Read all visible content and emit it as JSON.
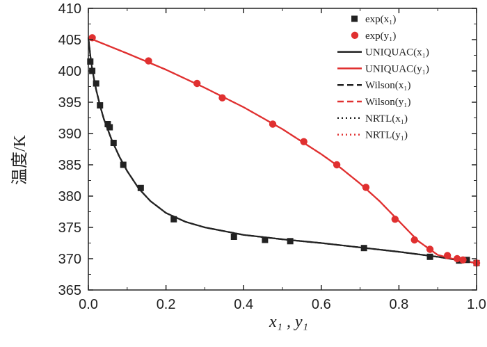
{
  "chart_data": {
    "type": "line",
    "xlabel": "x₁ , y₁",
    "ylabel": "温度/K",
    "xlim": [
      0.0,
      1.0
    ],
    "ylim": [
      365,
      410
    ],
    "x_ticks": [
      0.0,
      0.2,
      0.4,
      0.6,
      0.8,
      1.0
    ],
    "x_tick_labels": [
      "0.0",
      "0.2",
      "0.4",
      "0.6",
      "0.8",
      "1.0"
    ],
    "y_ticks": [
      365,
      370,
      375,
      380,
      385,
      390,
      395,
      400,
      405,
      410
    ],
    "y_tick_labels": [
      "365",
      "370",
      "375",
      "380",
      "385",
      "390",
      "395",
      "400",
      "405",
      "410"
    ],
    "grid": false,
    "legend_position": "top-right",
    "series": [
      {
        "name": "exp(x₁)",
        "kind": "scatter",
        "marker": "square",
        "color": "#222222",
        "points": [
          [
            0.005,
            401.5
          ],
          [
            0.01,
            400
          ],
          [
            0.02,
            398
          ],
          [
            0.03,
            394.5
          ],
          [
            0.05,
            391.5
          ],
          [
            0.055,
            391
          ],
          [
            0.065,
            388.5
          ],
          [
            0.09,
            385
          ],
          [
            0.135,
            381.3
          ],
          [
            0.22,
            376.3
          ],
          [
            0.375,
            373.5
          ],
          [
            0.455,
            373
          ],
          [
            0.52,
            372.8
          ],
          [
            0.71,
            371.7
          ],
          [
            0.88,
            370.3
          ],
          [
            0.955,
            369.7
          ],
          [
            0.975,
            369.8
          ],
          [
            1.0,
            369.3
          ]
        ]
      },
      {
        "name": "exp(y₁)",
        "kind": "scatter",
        "marker": "circle",
        "color": "#e03030",
        "points": [
          [
            0.01,
            405.3
          ],
          [
            0.155,
            401.6
          ],
          [
            0.28,
            398
          ],
          [
            0.345,
            395.7
          ],
          [
            0.475,
            391.5
          ],
          [
            0.555,
            388.7
          ],
          [
            0.64,
            385
          ],
          [
            0.715,
            381.4
          ],
          [
            0.79,
            376.3
          ],
          [
            0.84,
            373
          ],
          [
            0.88,
            371.5
          ],
          [
            0.925,
            370.5
          ],
          [
            0.95,
            370
          ],
          [
            0.965,
            369.8
          ],
          [
            1.0,
            369.3
          ]
        ]
      },
      {
        "name": "UNIQUAC(x₁)",
        "kind": "line",
        "dash": "solid",
        "color": "#222222",
        "points": [
          [
            0.0,
            405.3
          ],
          [
            0.005,
            402.5
          ],
          [
            0.01,
            400.2
          ],
          [
            0.02,
            397
          ],
          [
            0.03,
            394.5
          ],
          [
            0.04,
            392.3
          ],
          [
            0.06,
            389
          ],
          [
            0.08,
            386.3
          ],
          [
            0.1,
            384
          ],
          [
            0.13,
            381.2
          ],
          [
            0.16,
            379.2
          ],
          [
            0.2,
            377.3
          ],
          [
            0.25,
            375.9
          ],
          [
            0.3,
            375
          ],
          [
            0.4,
            373.8
          ],
          [
            0.5,
            373.1
          ],
          [
            0.6,
            372.5
          ],
          [
            0.7,
            371.8
          ],
          [
            0.8,
            371.1
          ],
          [
            0.9,
            370.3
          ],
          [
            0.95,
            369.8
          ],
          [
            1.0,
            369.3
          ]
        ]
      },
      {
        "name": "UNIQUAC(y₁)",
        "kind": "line",
        "dash": "solid",
        "color": "#e03030",
        "points": [
          [
            0.0,
            405.3
          ],
          [
            0.1,
            402.8
          ],
          [
            0.2,
            400.2
          ],
          [
            0.3,
            397.3
          ],
          [
            0.4,
            394.2
          ],
          [
            0.5,
            390.7
          ],
          [
            0.6,
            386.7
          ],
          [
            0.65,
            384.5
          ],
          [
            0.7,
            382
          ],
          [
            0.75,
            379.2
          ],
          [
            0.8,
            376
          ],
          [
            0.85,
            372.8
          ],
          [
            0.9,
            370.6
          ],
          [
            0.95,
            369.8
          ],
          [
            1.0,
            369.3
          ]
        ]
      },
      {
        "name": "Wilson(x₁)",
        "kind": "line",
        "dash": "dashed",
        "color": "#222222",
        "same_as": "UNIQUAC(x₁)"
      },
      {
        "name": "Wilson(y₁)",
        "kind": "line",
        "dash": "dashed",
        "color": "#e03030",
        "same_as": "UNIQUAC(y₁)"
      },
      {
        "name": "NRTL(x₁)",
        "kind": "line",
        "dash": "dotted",
        "color": "#222222",
        "same_as": "UNIQUAC(x₁)"
      },
      {
        "name": "NRTL(y₁)",
        "kind": "line",
        "dash": "dotted",
        "color": "#e03030",
        "same_as": "UNIQUAC(y₁)"
      }
    ]
  }
}
